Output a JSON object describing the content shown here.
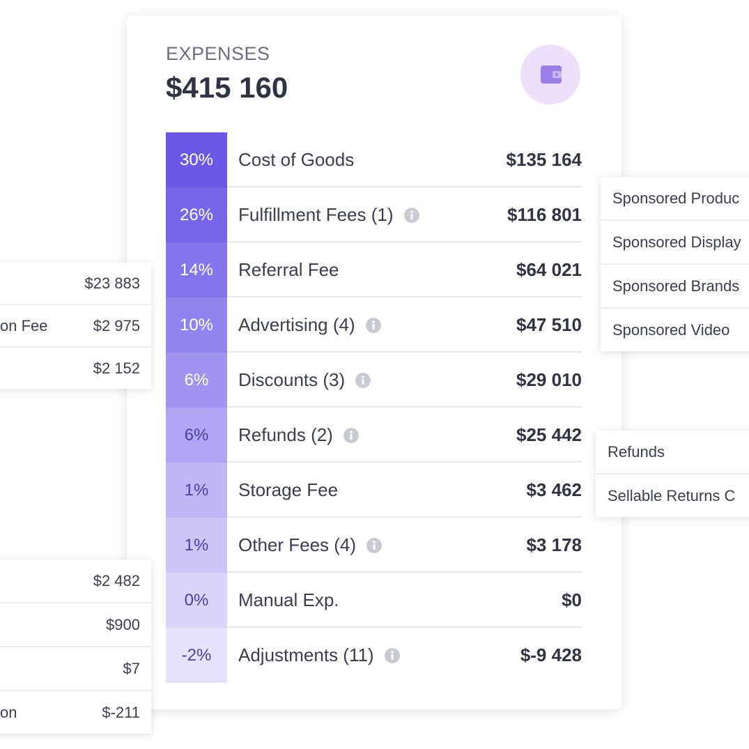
{
  "header": {
    "title": "EXPENSES",
    "total": "$415 160"
  },
  "table": {
    "rows": [
      {
        "percent": "30%",
        "label": "Cost of Goods",
        "amount": "$135 164",
        "info": false
      },
      {
        "percent": "26%",
        "label": "Fulfillment Fees (1)",
        "amount": "$116 801",
        "info": true
      },
      {
        "percent": "14%",
        "label": "Referral Fee",
        "amount": "$64 021",
        "info": false
      },
      {
        "percent": "10%",
        "label": "Advertising (4)",
        "amount": "$47 510",
        "info": true
      },
      {
        "percent": "6%",
        "label": "Discounts (3)",
        "amount": "$29 010",
        "info": true
      },
      {
        "percent": "6%",
        "label": "Refunds (2)",
        "amount": "$25 442",
        "info": true
      },
      {
        "percent": "1%",
        "label": "Storage Fee",
        "amount": "$3 462",
        "info": false
      },
      {
        "percent": "1%",
        "label": "Other Fees (4)",
        "amount": "$3 178",
        "info": true
      },
      {
        "percent": "0%",
        "label": "Manual Exp.",
        "amount": "$0",
        "info": false
      },
      {
        "percent": "-2%",
        "label": "Adjustments (11)",
        "amount": "$-9 428",
        "info": true
      }
    ]
  },
  "panels": [
    {
      "rows": [
        {
          "label": "Sponsored Produc"
        },
        {
          "label": "Sponsored Display"
        },
        {
          "label": "Sponsored Brands"
        },
        {
          "label": "Sponsored Video"
        }
      ]
    },
    {
      "rows": [
        {
          "label": "Refunds"
        },
        {
          "label": "Sellable Returns C"
        }
      ]
    },
    {
      "rows": [
        {
          "amount": "$23 883"
        },
        {
          "label": "on Fee",
          "amount": "$2 975"
        },
        {
          "amount": "$2 152"
        }
      ]
    },
    {
      "rows": [
        {
          "amount": "$2 482"
        },
        {
          "amount": "$900"
        },
        {
          "amount": "$7"
        },
        {
          "label": "on",
          "amount": "$-211"
        }
      ]
    }
  ]
}
